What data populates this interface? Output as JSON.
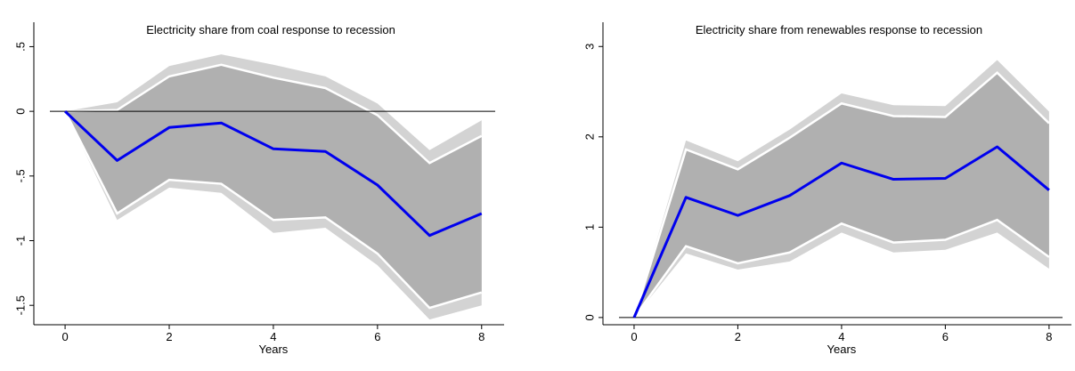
{
  "chart_data": [
    {
      "type": "band-line",
      "title": "Electricity share from coal response to recession",
      "x_label": "Years",
      "x": [
        0,
        1,
        2,
        3,
        4,
        5,
        6,
        7,
        8
      ],
      "xlim": [
        -0.6,
        8.5
      ],
      "xticks": [
        0,
        2,
        4,
        6,
        8
      ],
      "ylim": [
        -1.65,
        0.62
      ],
      "yticks": [
        {
          "value": 0.5,
          "label": ".5"
        },
        0,
        {
          "value": -0.5,
          "label": "-.5"
        },
        -1,
        -1.5
      ],
      "bands": [
        {
          "color": "#d3d3d3",
          "upper": [
            0,
            0.07,
            0.35,
            0.44,
            0.36,
            0.27,
            0.06,
            -0.3,
            -0.07
          ],
          "lower": [
            0,
            -0.84,
            -0.59,
            -0.63,
            -0.94,
            -0.9,
            -1.19,
            -1.61,
            -1.5
          ]
        },
        {
          "color": "#b0b0b0",
          "edge_color": "#ffffff",
          "upper": [
            0,
            0.01,
            0.27,
            0.36,
            0.26,
            0.18,
            -0.03,
            -0.4,
            -0.19
          ],
          "lower": [
            0,
            -0.79,
            -0.53,
            -0.56,
            -0.84,
            -0.82,
            -1.1,
            -1.52,
            -1.4
          ]
        }
      ],
      "series": [
        {
          "color": "#0000ee",
          "values": [
            0,
            -0.38,
            -0.125,
            -0.09,
            -0.29,
            -0.31,
            -0.57,
            -0.96,
            -0.79
          ]
        }
      ]
    },
    {
      "type": "band-line",
      "title": "Electricity share from renewables response to recession",
      "x_label": "Years",
      "x": [
        0,
        1,
        2,
        3,
        4,
        5,
        6,
        7,
        8
      ],
      "xlim": [
        -0.6,
        8.5
      ],
      "xticks": [
        0,
        2,
        4,
        6,
        8
      ],
      "ylim": [
        -0.08,
        3.17
      ],
      "yticks": [
        0,
        1,
        2,
        3
      ],
      "bands": [
        {
          "color": "#d3d3d3",
          "upper": [
            0,
            1.96,
            1.73,
            2.08,
            2.48,
            2.35,
            2.34,
            2.85,
            2.28
          ],
          "lower": [
            0,
            0.71,
            0.53,
            0.62,
            0.94,
            0.72,
            0.75,
            0.94,
            0.54
          ]
        },
        {
          "color": "#b0b0b0",
          "edge_color": "#ffffff",
          "upper": [
            0,
            1.86,
            1.64,
            1.99,
            2.37,
            2.23,
            2.22,
            2.71,
            2.15
          ],
          "lower": [
            0,
            0.79,
            0.6,
            0.72,
            1.04,
            0.83,
            0.86,
            1.08,
            0.67
          ]
        }
      ],
      "series": [
        {
          "color": "#0000ee",
          "values": [
            0,
            1.33,
            1.13,
            1.35,
            1.71,
            1.53,
            1.54,
            1.89,
            1.41
          ]
        }
      ]
    }
  ]
}
